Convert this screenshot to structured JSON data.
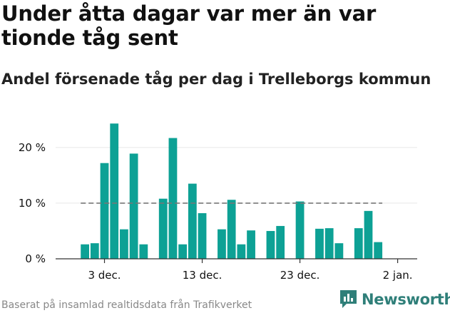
{
  "title": "Under åtta dagar var mer än var tionde tåg sent",
  "subtitle": "Andel försenade tåg per dag i Trelleborgs kommun",
  "source": "Baserat på insamlad realtidsdata från Trafikverket",
  "brand": {
    "name": "Newsworthy",
    "icon": "newsworthy-logo-icon"
  },
  "colors": {
    "bar": "#0da195",
    "reference_line": "#777777",
    "grid": "#e6e6e6",
    "text": "#111111",
    "brand": "#2f7f79"
  },
  "chart_data": {
    "type": "bar",
    "x": [
      "2023-12-01",
      "2023-12-02",
      "2023-12-03",
      "2023-12-04",
      "2023-12-05",
      "2023-12-06",
      "2023-12-07",
      "2023-12-08",
      "2023-12-09",
      "2023-12-10",
      "2023-12-11",
      "2023-12-12",
      "2023-12-13",
      "2023-12-14",
      "2023-12-15",
      "2023-12-16",
      "2023-12-17",
      "2023-12-18",
      "2023-12-19",
      "2023-12-20",
      "2023-12-21",
      "2023-12-22",
      "2023-12-23",
      "2023-12-24",
      "2023-12-25",
      "2023-12-26",
      "2023-12-27",
      "2023-12-28",
      "2023-12-29",
      "2023-12-30",
      "2023-12-31"
    ],
    "values": [
      2.6,
      2.8,
      17.2,
      24.3,
      5.3,
      18.9,
      2.6,
      null,
      10.8,
      21.7,
      2.6,
      13.5,
      8.2,
      null,
      5.3,
      10.6,
      2.6,
      5.1,
      null,
      5.0,
      5.9,
      null,
      10.3,
      null,
      5.4,
      5.5,
      2.8,
      null,
      5.5,
      8.6,
      3.0
    ],
    "reference_line": 10,
    "yticks": [
      0,
      10,
      20
    ],
    "ytick_labels": [
      "0 %",
      "10 %",
      "20 %"
    ],
    "xticks": [
      "2023-12-03",
      "2023-12-13",
      "2023-12-23",
      "2024-01-02"
    ],
    "xtick_labels": [
      "3 dec.",
      "13 dec.",
      "23 dec.",
      "2 jan."
    ],
    "ylim": [
      0,
      26
    ],
    "grid": true
  }
}
